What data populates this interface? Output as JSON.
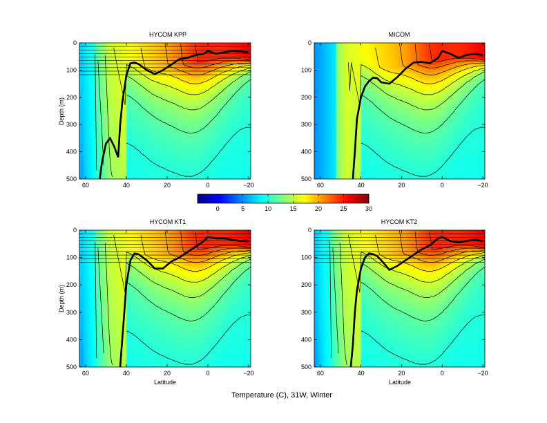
{
  "figure": {
    "caption": "Temperature (C), 31W, Winter"
  },
  "chart_data": [
    {
      "type": "heatmap",
      "title": "HYCOM KPP",
      "xlabel": "",
      "ylabel": "Depth (m)",
      "xlim": [
        63,
        -21
      ],
      "ylim": [
        500,
        0
      ],
      "xticks": [
        60,
        40,
        20,
        0,
        -20
      ],
      "xtick_labels": [
        "60",
        "40",
        "20",
        "0",
        "−20"
      ],
      "yticks": [
        0,
        100,
        200,
        300,
        400,
        500
      ],
      "mixed_layer_depth": {
        "latitude": [
          53,
          52,
          50,
          48,
          46,
          44,
          43,
          42,
          40,
          38,
          36,
          34,
          30,
          26,
          22,
          18,
          14,
          10,
          6,
          2,
          0,
          -4,
          -8,
          -12,
          -16,
          -20
        ],
        "depth": [
          500,
          440,
          370,
          350,
          380,
          420,
          300,
          220,
          120,
          75,
          72,
          78,
          100,
          115,
          100,
          80,
          60,
          55,
          45,
          40,
          30,
          40,
          35,
          30,
          32,
          35
        ]
      }
    },
    {
      "type": "heatmap",
      "title": "MICOM",
      "xlabel": "",
      "ylabel": "",
      "xlim": [
        63,
        -21
      ],
      "ylim": [
        500,
        0
      ],
      "xticks": [
        60,
        40,
        20,
        0,
        -20
      ],
      "xtick_labels": [
        "60",
        "40",
        "20",
        "0",
        "−20"
      ],
      "yticks": [
        0,
        100,
        200,
        300,
        400,
        500
      ],
      "mixed_layer_depth": {
        "latitude": [
          44,
          43,
          42,
          40,
          38,
          36,
          34,
          32,
          30,
          26,
          22,
          18,
          14,
          10,
          6,
          2,
          0,
          -4,
          -8,
          -12,
          -16,
          -20
        ],
        "depth": [
          500,
          400,
          280,
          200,
          160,
          140,
          128,
          130,
          145,
          150,
          125,
          95,
          72,
          70,
          75,
          55,
          30,
          40,
          55,
          45,
          40,
          45
        ]
      }
    },
    {
      "type": "heatmap",
      "title": "HYCOM KT1",
      "xlabel": "Latitude",
      "ylabel": "Depth (m)",
      "xlim": [
        63,
        -21
      ],
      "ylim": [
        500,
        0
      ],
      "xticks": [
        60,
        40,
        20,
        0,
        -20
      ],
      "xtick_labels": [
        "60",
        "40",
        "20",
        "0",
        "−20"
      ],
      "yticks": [
        0,
        100,
        200,
        300,
        400,
        500
      ],
      "mixed_layer_depth": {
        "latitude": [
          43,
          42,
          41,
          40,
          38,
          36,
          34,
          30,
          26,
          22,
          18,
          14,
          10,
          6,
          2,
          0,
          -4,
          -8,
          -12,
          -16,
          -20
        ],
        "depth": [
          500,
          400,
          300,
          200,
          110,
          85,
          88,
          110,
          140,
          140,
          115,
          100,
          80,
          60,
          40,
          25,
          30,
          30,
          35,
          40,
          40
        ]
      }
    },
    {
      "type": "heatmap",
      "title": "HYCOM KT2",
      "xlabel": "Latitude",
      "ylabel": "",
      "xlim": [
        63,
        -21
      ],
      "ylim": [
        500,
        0
      ],
      "xticks": [
        60,
        40,
        20,
        0,
        -20
      ],
      "xtick_labels": [
        "60",
        "40",
        "20",
        "0",
        "−20"
      ],
      "yticks": [
        0,
        100,
        200,
        300,
        400,
        500
      ],
      "mixed_layer_depth": {
        "latitude": [
          45,
          44,
          43,
          42,
          40,
          38,
          36,
          34,
          32,
          30,
          26,
          22,
          18,
          14,
          10,
          6,
          2,
          0,
          -4,
          -8,
          -12,
          -16,
          -20
        ],
        "depth": [
          500,
          420,
          300,
          220,
          140,
          100,
          85,
          88,
          95,
          110,
          145,
          130,
          110,
          90,
          70,
          55,
          30,
          25,
          40,
          45,
          40,
          35,
          40
        ]
      }
    }
  ],
  "colorbar": {
    "min": -4,
    "max": 30,
    "ticks": [
      0,
      5,
      10,
      15,
      20,
      25,
      30
    ],
    "tick_labels": [
      "0",
      "5",
      "10",
      "15",
      "20",
      "25",
      "30"
    ],
    "colormap": "jet"
  }
}
